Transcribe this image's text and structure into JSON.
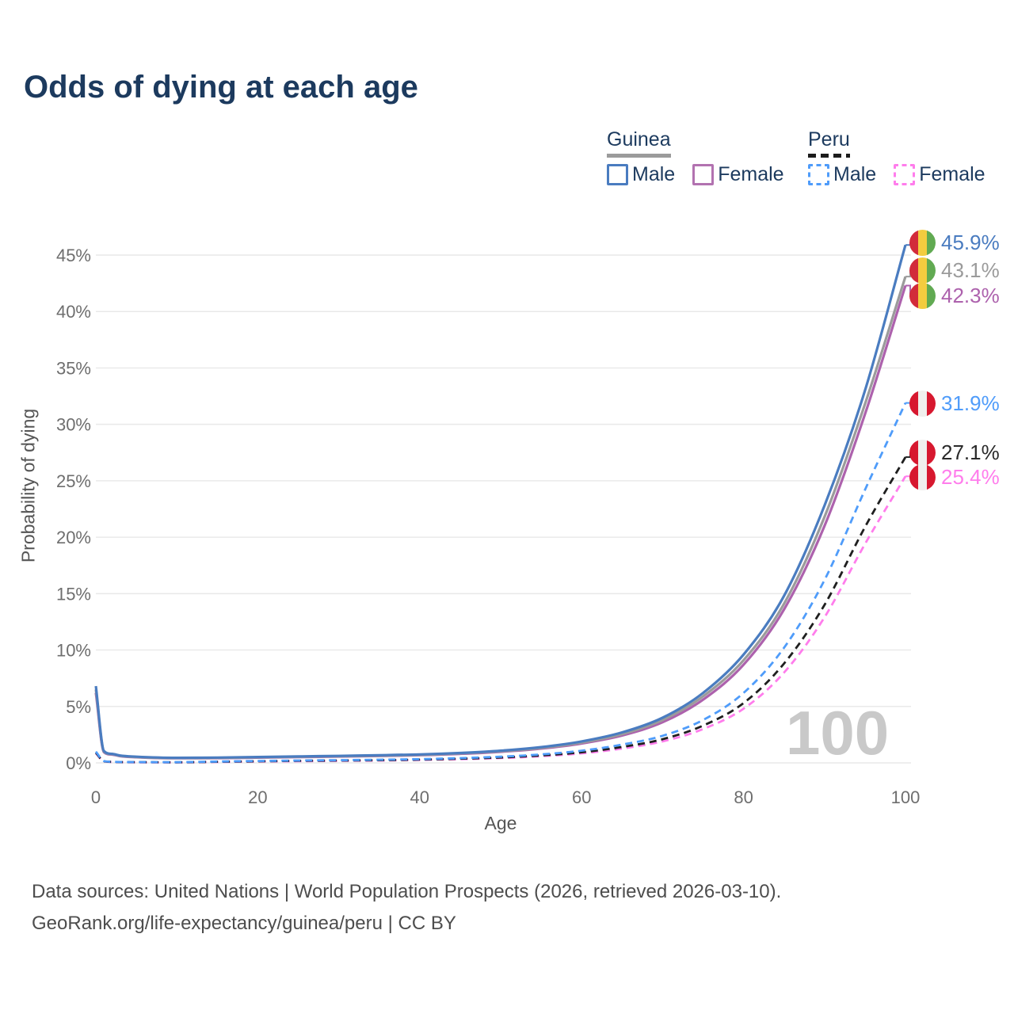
{
  "title": "Odds of dying at each age",
  "watermark": "100",
  "legend": {
    "guinea": {
      "title": "Guinea",
      "male_label": "Male",
      "female_label": "Female"
    },
    "peru": {
      "title": "Peru",
      "male_label": "Male",
      "female_label": "Female"
    }
  },
  "footer": {
    "line1": "Data sources: United Nations | World Population Prospects (2026, retrieved 2026-03-10).",
    "line2": "GeoRank.org/life-expectancy/guinea/peru | CC BY"
  },
  "annotations": [
    {
      "label": "45.9%",
      "value": 45.9,
      "color": "#4a7cc0",
      "flag": "guinea"
    },
    {
      "label": "43.1%",
      "value": 43.1,
      "color": "#9b9b9b",
      "flag": "guinea"
    },
    {
      "label": "42.3%",
      "value": 42.3,
      "color": "#ad62ad",
      "flag": "guinea"
    },
    {
      "label": "31.9%",
      "value": 31.9,
      "color": "#4f9cfa",
      "flag": "peru"
    },
    {
      "label": "27.1%",
      "value": 27.1,
      "color": "#2a2a2a",
      "flag": "peru"
    },
    {
      "label": "25.4%",
      "value": 25.4,
      "color": "#ff7dec",
      "flag": "peru"
    }
  ],
  "chart_data": {
    "type": "line",
    "title": "Odds of dying at each age",
    "xlabel": "Age",
    "ylabel": "Probability of dying",
    "xlim": [
      0,
      100
    ],
    "ylim": [
      0,
      45
    ],
    "x_ticks": [
      0,
      20,
      40,
      60,
      80,
      100
    ],
    "y_tick_values": [
      0,
      5,
      10,
      15,
      20,
      25,
      30,
      35,
      40,
      45
    ],
    "y_tick_labels": [
      "0%",
      "5%",
      "10%",
      "15%",
      "20%",
      "25%",
      "30%",
      "35%",
      "40%",
      "45%"
    ],
    "grid": true,
    "legend_position": "top-right",
    "x": [
      0,
      1,
      2,
      3,
      5,
      10,
      15,
      20,
      25,
      30,
      35,
      40,
      45,
      50,
      55,
      60,
      65,
      70,
      75,
      80,
      85,
      90,
      95,
      100
    ],
    "series": [
      {
        "name": "Guinea female",
        "country": "Guinea",
        "sex": "female",
        "color": "#ad62ad",
        "dash": false,
        "values": [
          6.2,
          0.95,
          0.74,
          0.6,
          0.5,
          0.41,
          0.42,
          0.46,
          0.51,
          0.56,
          0.61,
          0.68,
          0.8,
          0.98,
          1.27,
          1.72,
          2.43,
          3.6,
          5.6,
          8.7,
          13.6,
          21.0,
          30.9,
          42.3
        ]
      },
      {
        "name": "Guinea (both sexes)",
        "country": "Guinea",
        "sex": "all",
        "color": "#9b9b9b",
        "dash": false,
        "values": [
          6.5,
          1.0,
          0.77,
          0.62,
          0.52,
          0.43,
          0.44,
          0.49,
          0.54,
          0.59,
          0.64,
          0.71,
          0.84,
          1.03,
          1.33,
          1.8,
          2.55,
          3.8,
          5.9,
          9.1,
          14.1,
          21.8,
          31.8,
          43.1
        ]
      },
      {
        "name": "Guinea male",
        "country": "Guinea",
        "sex": "male",
        "color": "#4a7cc0",
        "dash": false,
        "values": [
          6.8,
          1.05,
          0.8,
          0.65,
          0.55,
          0.45,
          0.47,
          0.52,
          0.57,
          0.62,
          0.68,
          0.75,
          0.88,
          1.08,
          1.4,
          1.9,
          2.7,
          4.0,
          6.2,
          9.6,
          14.8,
          22.8,
          33.0,
          45.9
        ]
      },
      {
        "name": "Peru female",
        "country": "Peru",
        "sex": "female",
        "color": "#ff7dec",
        "dash": true,
        "values": [
          0.85,
          0.13,
          0.08,
          0.06,
          0.05,
          0.04,
          0.08,
          0.12,
          0.15,
          0.18,
          0.21,
          0.26,
          0.33,
          0.43,
          0.59,
          0.84,
          1.27,
          1.9,
          3.0,
          4.8,
          8.0,
          12.9,
          19.4,
          25.4
        ]
      },
      {
        "name": "Peru (both sexes)",
        "country": "Peru",
        "sex": "all",
        "color": "#1f1f1f",
        "dash": true,
        "values": [
          0.9,
          0.14,
          0.09,
          0.07,
          0.06,
          0.05,
          0.1,
          0.14,
          0.18,
          0.21,
          0.24,
          0.29,
          0.37,
          0.48,
          0.66,
          0.94,
          1.41,
          2.1,
          3.3,
          5.3,
          8.8,
          14.0,
          20.9,
          27.1
        ]
      },
      {
        "name": "Peru male",
        "country": "Peru",
        "sex": "male",
        "color": "#4f9cfa",
        "dash": true,
        "values": [
          1.0,
          0.16,
          0.1,
          0.08,
          0.07,
          0.06,
          0.12,
          0.17,
          0.21,
          0.24,
          0.28,
          0.33,
          0.42,
          0.55,
          0.75,
          1.08,
          1.62,
          2.4,
          3.8,
          6.2,
          10.2,
          16.2,
          24.2,
          31.9
        ]
      }
    ]
  }
}
